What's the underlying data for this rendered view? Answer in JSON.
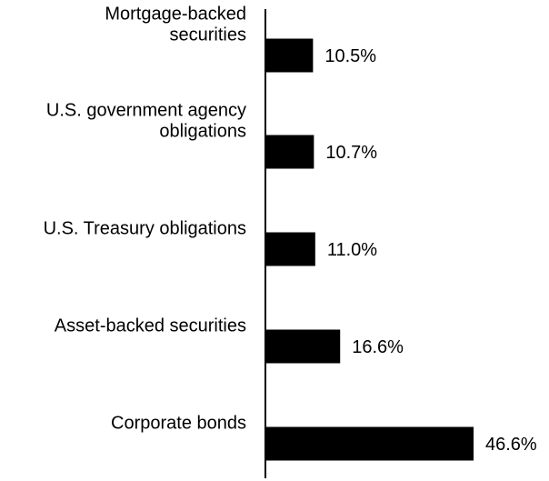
{
  "chart_data": {
    "type": "bar",
    "orientation": "horizontal",
    "categories": [
      [
        "Mortgage-backed",
        "securities"
      ],
      [
        "U.S. government agency",
        "obligations"
      ],
      [
        "U.S. Treasury obligations"
      ],
      [
        "Asset-backed securities"
      ],
      [
        "Corporate bonds"
      ]
    ],
    "values": [
      10.5,
      10.7,
      11.0,
      16.6,
      46.6
    ],
    "value_labels": [
      "10.5%",
      "10.7%",
      "11.0%",
      "16.6%",
      "46.6%"
    ],
    "bar_color": "#000000",
    "grid": false,
    "legend": "none"
  }
}
